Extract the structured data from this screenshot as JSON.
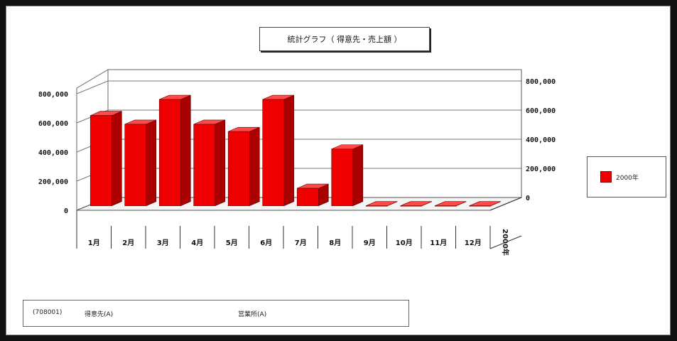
{
  "chart_data": {
    "type": "bar",
    "title": "統計グラフ（ 得意先・売上額 ）",
    "categories": [
      "1月",
      "2月",
      "3月",
      "4月",
      "5月",
      "6月",
      "7月",
      "8月",
      "9月",
      "10月",
      "11月",
      "12月"
    ],
    "series": [
      {
        "name": "2000年",
        "values": [
          620000,
          560000,
          730000,
          560000,
          510000,
          730000,
          120000,
          390000,
          0,
          0,
          0,
          0
        ]
      }
    ],
    "y_ticks_left": [
      "800,000",
      "600,000",
      "400,000",
      "200,000",
      "0"
    ],
    "y_ticks_right": [
      "800,000",
      "600,000",
      "400,000",
      "200,000",
      "0"
    ],
    "ylim": [
      0,
      800000
    ],
    "depth_label": "2000年",
    "legend_position": "right",
    "grid": true,
    "colors": {
      "bar_front": "#ee0000",
      "bar_side": "#aa0000",
      "bar_top": "#ff4a4a"
    }
  },
  "info": {
    "code": "(708001)",
    "customer": "得意先(A)",
    "office": "営業所(A)"
  }
}
